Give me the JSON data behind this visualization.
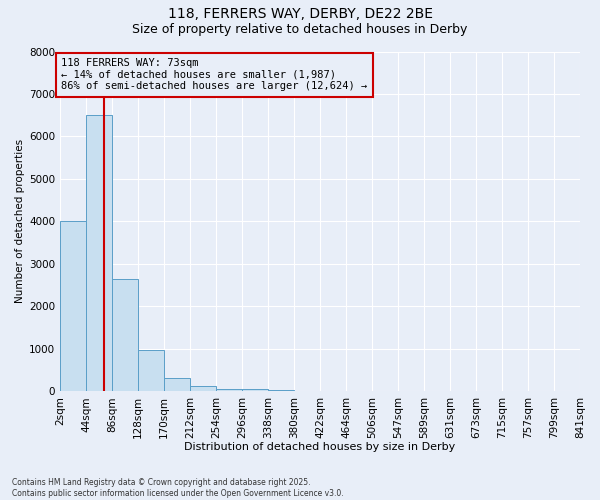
{
  "title_line1": "118, FERRERS WAY, DERBY, DE22 2BE",
  "title_line2": "Size of property relative to detached houses in Derby",
  "xlabel": "Distribution of detached houses by size in Derby",
  "ylabel": "Number of detached properties",
  "bar_color": "#c8dff0",
  "bar_edge_color": "#5a9ec8",
  "background_color": "#e8eef8",
  "grid_color": "#ffffff",
  "annotation_box_color": "#cc0000",
  "annotation_line_color": "#cc0000",
  "property_line_x": 73,
  "annotation_text": "118 FERRERS WAY: 73sqm\n← 14% of detached houses are smaller (1,987)\n86% of semi-detached houses are larger (12,624) →",
  "footer_line1": "Contains HM Land Registry data © Crown copyright and database right 2025.",
  "footer_line2": "Contains public sector information licensed under the Open Government Licence v3.0.",
  "bin_edges": [
    2,
    44,
    86,
    128,
    170,
    212,
    254,
    296,
    338,
    380,
    422,
    464,
    506,
    547,
    589,
    631,
    673,
    715,
    757,
    799,
    841
  ],
  "bin_labels": [
    "2sqm",
    "44sqm",
    "86sqm",
    "128sqm",
    "170sqm",
    "212sqm",
    "254sqm",
    "296sqm",
    "338sqm",
    "380sqm",
    "422sqm",
    "464sqm",
    "506sqm",
    "547sqm",
    "589sqm",
    "631sqm",
    "673sqm",
    "715sqm",
    "757sqm",
    "799sqm",
    "841sqm"
  ],
  "bar_heights": [
    4000,
    6500,
    2650,
    980,
    310,
    120,
    60,
    45,
    30,
    0,
    0,
    0,
    0,
    0,
    0,
    0,
    0,
    0,
    0,
    0
  ],
  "ylim": [
    0,
    8000
  ],
  "yticks": [
    0,
    1000,
    2000,
    3000,
    4000,
    5000,
    6000,
    7000,
    8000
  ]
}
